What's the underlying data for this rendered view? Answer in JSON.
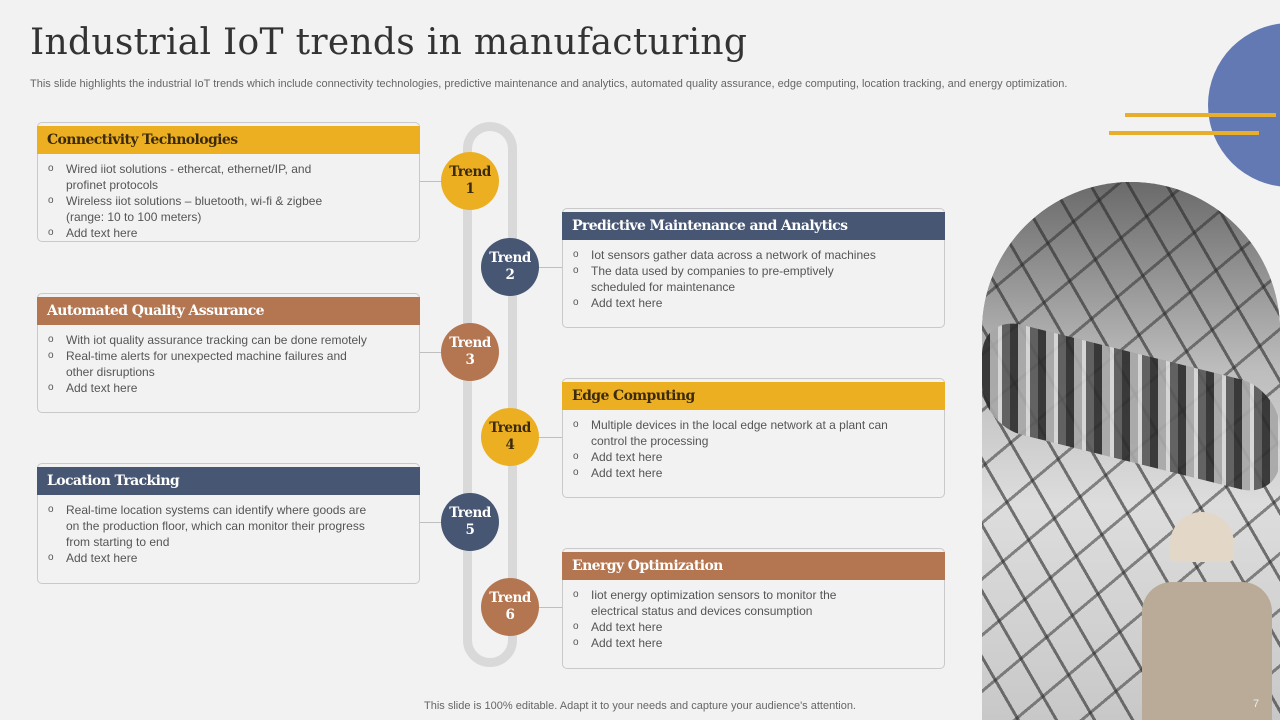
{
  "title": "Industrial IoT trends in manufacturing",
  "subtitle": "This slide highlights the industrial IoT trends which include connectivity technologies, predictive maintenance and analytics, automated quality assurance, edge computing, location tracking, and energy optimization.",
  "colors": {
    "gold": "#ecaf22",
    "navy": "#475673",
    "brown": "#b37650",
    "blue_circle": "#6379b3",
    "track": "#d9d9d9"
  },
  "trends": [
    {
      "word": "Trend",
      "num": "1",
      "color": "#ecaf22"
    },
    {
      "word": "Trend",
      "num": "2",
      "color": "#475673"
    },
    {
      "word": "Trend",
      "num": "3",
      "color": "#b37650"
    },
    {
      "word": "Trend",
      "num": "4",
      "color": "#ecaf22"
    },
    {
      "word": "Trend",
      "num": "5",
      "color": "#475673"
    },
    {
      "word": "Trend",
      "num": "6",
      "color": "#b37650"
    }
  ],
  "cards": [
    {
      "title": "Connectivity Technologies",
      "bullets": [
        "Wired iiot solutions - ethercat, ethernet/IP, and\nprofinet  protocols",
        "Wireless iiot solutions – bluetooth, wi-fi  & zigbee\n(range:  10 to 100 meters)",
        "Add text here"
      ]
    },
    {
      "title": "Predictive Maintenance and Analytics",
      "bullets": [
        "Iot sensors gather data across a network of machines",
        "The data used by companies to pre-emptively\nscheduled for maintenance",
        "Add text here"
      ]
    },
    {
      "title": "Automated Quality Assurance",
      "bullets": [
        "With iot quality assurance tracking can be done remotely",
        "Real-time alerts for unexpected machine failures and\nother disruptions",
        "Add text here"
      ]
    },
    {
      "title": "Edge Computing",
      "bullets": [
        "Multiple devices in the local edge network at a plant can\ncontrol the processing",
        "Add text here",
        "Add text here"
      ]
    },
    {
      "title": "Location Tracking",
      "bullets": [
        "Real-time location systems can identify where goods are\non the production floor, which can monitor their progress\nfrom starting to end",
        "Add text here"
      ]
    },
    {
      "title": "Energy Optimization",
      "bullets": [
        "Iiot energy optimization sensors to monitor the\nelectrical status and devices consumption",
        "Add text here",
        "Add text here"
      ]
    }
  ],
  "footer": "This slide is 100% editable. Adapt it to your needs and capture your audience's attention.",
  "page_number": "7"
}
